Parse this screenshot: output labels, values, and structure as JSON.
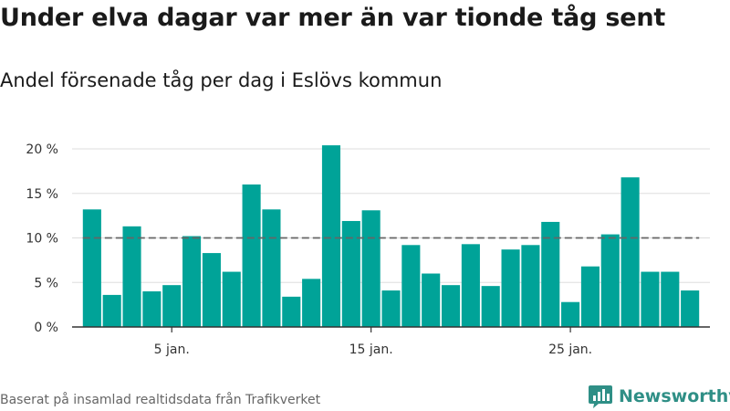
{
  "title": "Under elva dagar var mer än var tionde tåg sent",
  "subtitle": "Andel försenade tåg per dag i Eslövs kommun",
  "footer": {
    "source": "Baserat på insamlad realtidsdata från Trafikverket",
    "brand": "Newsworthy"
  },
  "colors": {
    "bar": "#00a398",
    "reference_line": "#666666",
    "grid": "#dddddd",
    "brand": "#2f8f86"
  },
  "brand_icon": "newsworthy-bar-chart-logo",
  "chart_data": {
    "type": "bar",
    "x": [
      1,
      2,
      3,
      4,
      5,
      6,
      7,
      8,
      9,
      10,
      11,
      12,
      13,
      14,
      15,
      16,
      17,
      18,
      19,
      20,
      21,
      22,
      23,
      24,
      25,
      26,
      27,
      28,
      29,
      30,
      31
    ],
    "values": [
      13.2,
      3.6,
      11.3,
      4.0,
      4.7,
      10.2,
      8.3,
      6.2,
      16.0,
      13.2,
      3.4,
      5.4,
      20.4,
      11.9,
      13.1,
      4.1,
      9.2,
      6.0,
      4.7,
      9.3,
      4.6,
      8.7,
      9.2,
      11.8,
      2.8,
      6.8,
      10.4,
      16.8,
      6.2,
      6.2,
      4.1
    ],
    "reference_value": 10,
    "xlim": [
      0,
      32
    ],
    "ylim": [
      0,
      20
    ],
    "y_ticks": [
      {
        "value": 0,
        "label": "0 %"
      },
      {
        "value": 5,
        "label": "5 %"
      },
      {
        "value": 10,
        "label": "10 %"
      },
      {
        "value": 15,
        "label": "15 %"
      },
      {
        "value": 20,
        "label": "20 %"
      }
    ],
    "x_ticks": [
      {
        "value": 5,
        "label": "5 jan."
      },
      {
        "value": 15,
        "label": "15 jan."
      },
      {
        "value": 25,
        "label": "25 jan."
      }
    ],
    "grid": true,
    "xlabel": "",
    "ylabel": ""
  }
}
